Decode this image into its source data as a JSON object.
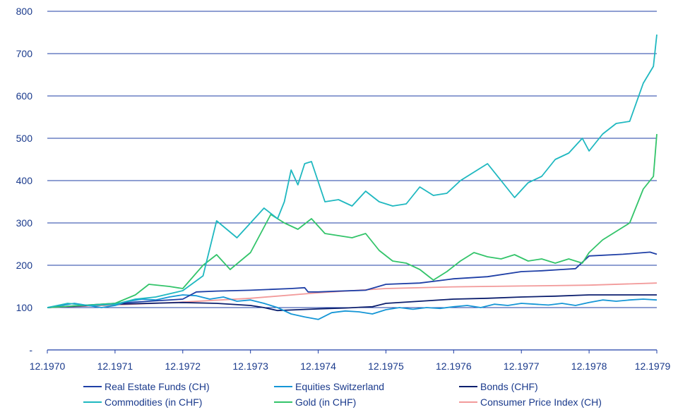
{
  "chart_data": {
    "type": "line",
    "ylim": [
      0,
      800
    ],
    "y_ticks": [
      {
        "value": 0,
        "label": "-"
      },
      {
        "value": 100,
        "label": "100"
      },
      {
        "value": 200,
        "label": "200"
      },
      {
        "value": 300,
        "label": "300"
      },
      {
        "value": 400,
        "label": "400"
      },
      {
        "value": 500,
        "label": "500"
      },
      {
        "value": 600,
        "label": "600"
      },
      {
        "value": 700,
        "label": "700"
      },
      {
        "value": 800,
        "label": "800"
      }
    ],
    "x_ticks": [
      {
        "value": 1970,
        "label": "12.1970"
      },
      {
        "value": 1971,
        "label": "12.1971"
      },
      {
        "value": 1972,
        "label": "12.1972"
      },
      {
        "value": 1973,
        "label": "12.1973"
      },
      {
        "value": 1974,
        "label": "12.1974"
      },
      {
        "value": 1975,
        "label": "12.1975"
      },
      {
        "value": 1976,
        "label": "12.1976"
      },
      {
        "value": 1977,
        "label": "12.1977"
      },
      {
        "value": 1978,
        "label": "12.1978"
      },
      {
        "value": 1979,
        "label": "12.1979"
      }
    ],
    "xlim": [
      1970,
      1979
    ],
    "grid": "horizontal",
    "legend_position": "bottom",
    "series": [
      {
        "name": "Real Estate Funds (CH)",
        "color": "#1f3fa6",
        "x": [
          1970,
          1970.5,
          1971,
          1971.5,
          1972,
          1972.2,
          1972.5,
          1973,
          1973.3,
          1973.6,
          1973.8,
          1973.85,
          1974,
          1974.3,
          1974.7,
          1975,
          1975.5,
          1976,
          1976.5,
          1977,
          1977.3,
          1977.6,
          1977.8,
          1978,
          1978.5,
          1978.9,
          1979
        ],
        "values": [
          100,
          105,
          110,
          115,
          120,
          137,
          139,
          141,
          143,
          145,
          147,
          137,
          137,
          139,
          141,
          155,
          158,
          168,
          173,
          185,
          187,
          190,
          192,
          222,
          226,
          231,
          226
        ]
      },
      {
        "name": "Equities Switzerland",
        "color": "#1596d6",
        "x": [
          1970,
          1970.2,
          1970.4,
          1970.6,
          1970.8,
          1971,
          1971.2,
          1971.4,
          1971.6,
          1971.8,
          1972,
          1972.2,
          1972.4,
          1972.6,
          1972.8,
          1973,
          1973.2,
          1973.4,
          1973.6,
          1973.8,
          1974,
          1974.2,
          1974.4,
          1974.6,
          1974.8,
          1975,
          1975.2,
          1975.4,
          1975.6,
          1975.8,
          1976,
          1976.2,
          1976.4,
          1976.6,
          1976.8,
          1977,
          1977.2,
          1977.4,
          1977.6,
          1977.8,
          1978,
          1978.2,
          1978.4,
          1978.6,
          1978.8,
          1979
        ],
        "values": [
          100,
          105,
          110,
          105,
          100,
          105,
          115,
          120,
          118,
          125,
          130,
          128,
          120,
          125,
          115,
          118,
          110,
          100,
          85,
          78,
          72,
          88,
          92,
          90,
          85,
          95,
          100,
          96,
          100,
          98,
          102,
          105,
          100,
          108,
          105,
          110,
          108,
          106,
          110,
          105,
          112,
          118,
          115,
          118,
          120,
          118
        ]
      },
      {
        "name": "Bonds (CHF)",
        "color": "#0c1f6e",
        "x": [
          1970,
          1971,
          1972,
          1972.5,
          1973,
          1973.2,
          1973.4,
          1973.7,
          1974,
          1974.4,
          1974.8,
          1975,
          1975.5,
          1976,
          1976.5,
          1977,
          1977.5,
          1978,
          1978.5,
          1979
        ],
        "values": [
          100,
          108,
          112,
          110,
          105,
          100,
          93,
          95,
          97,
          99,
          102,
          110,
          115,
          120,
          122,
          125,
          127,
          130,
          130,
          130
        ]
      },
      {
        "name": "Commodities (in CHF)",
        "color": "#1fb8c0",
        "x": [
          1970,
          1970.3,
          1970.6,
          1971,
          1971.3,
          1971.6,
          1972,
          1972.3,
          1972.5,
          1972.8,
          1973,
          1973.2,
          1973.4,
          1973.5,
          1973.6,
          1973.7,
          1973.8,
          1973.9,
          1974.1,
          1974.3,
          1974.5,
          1974.7,
          1974.9,
          1975.1,
          1975.3,
          1975.5,
          1975.7,
          1975.9,
          1976.1,
          1976.3,
          1976.5,
          1976.7,
          1976.9,
          1977.1,
          1977.3,
          1977.5,
          1977.7,
          1977.9,
          1978,
          1978.2,
          1978.4,
          1978.6,
          1978.8,
          1978.95,
          1979
        ],
        "values": [
          100,
          110,
          105,
          108,
          120,
          125,
          140,
          175,
          305,
          265,
          300,
          335,
          310,
          350,
          425,
          390,
          440,
          445,
          350,
          355,
          340,
          375,
          350,
          340,
          345,
          385,
          365,
          370,
          400,
          420,
          440,
          400,
          360,
          395,
          410,
          450,
          465,
          500,
          470,
          510,
          535,
          540,
          630,
          670,
          745
        ]
      },
      {
        "name": "Gold (in CHF)",
        "color": "#33c46a",
        "x": [
          1970,
          1970.5,
          1971,
          1971.3,
          1971.5,
          1971.8,
          1972,
          1972.3,
          1972.5,
          1972.7,
          1973,
          1973.3,
          1973.5,
          1973.7,
          1973.9,
          1974.1,
          1974.3,
          1974.5,
          1974.7,
          1974.9,
          1975.1,
          1975.3,
          1975.5,
          1975.7,
          1975.9,
          1976.1,
          1976.3,
          1976.5,
          1976.7,
          1976.9,
          1977.1,
          1977.3,
          1977.5,
          1977.7,
          1977.9,
          1978,
          1978.2,
          1978.4,
          1978.6,
          1978.8,
          1978.95,
          1979
        ],
        "values": [
          100,
          105,
          110,
          130,
          155,
          150,
          145,
          200,
          225,
          190,
          230,
          320,
          300,
          285,
          310,
          275,
          270,
          265,
          275,
          235,
          210,
          205,
          190,
          165,
          185,
          210,
          230,
          220,
          215,
          225,
          210,
          215,
          205,
          215,
          205,
          230,
          260,
          280,
          300,
          380,
          410,
          510
        ]
      },
      {
        "name": "Consumer Price Index (CH)",
        "color": "#f29a9a",
        "x": [
          1970,
          1971,
          1972,
          1973,
          1974,
          1975,
          1976,
          1977,
          1978,
          1979
        ],
        "values": [
          100,
          106,
          113,
          122,
          135,
          145,
          149,
          151,
          153,
          158
        ]
      }
    ]
  }
}
